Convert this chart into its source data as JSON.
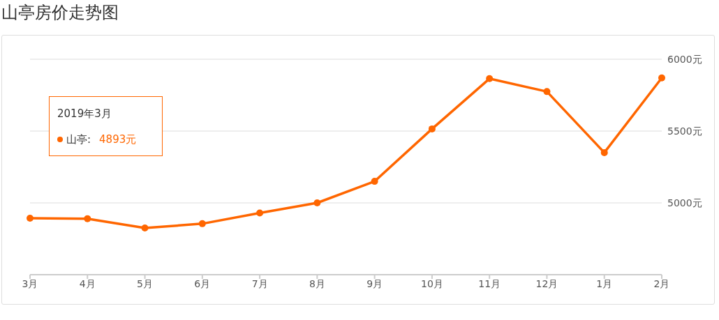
{
  "chart_data": {
    "type": "line",
    "title": "山亭房价走势图",
    "categories": [
      "3月",
      "4月",
      "5月",
      "6月",
      "7月",
      "8月",
      "9月",
      "10月",
      "11月",
      "12月",
      "1月",
      "2月"
    ],
    "series": [
      {
        "color": "#ff6600",
        "values": [
          4893,
          4890,
          4825,
          4855,
          4930,
          5000,
          5150,
          5515,
          5865,
          5775,
          5350,
          5870
        ]
      }
    ],
    "annotations": [
      "2019年3月",
      "山亭:",
      "4893元"
    ],
    "ylim": [
      4500,
      6000
    ],
    "yticks": [
      {
        "value": 4500,
        "label": null
      },
      {
        "value": 5000,
        "label": "5000元"
      },
      {
        "value": 5500,
        "label": "5500元"
      },
      {
        "value": 6000,
        "label": "6000元"
      }
    ],
    "grid": "y",
    "marker": "circle",
    "line_style": "solid"
  }
}
